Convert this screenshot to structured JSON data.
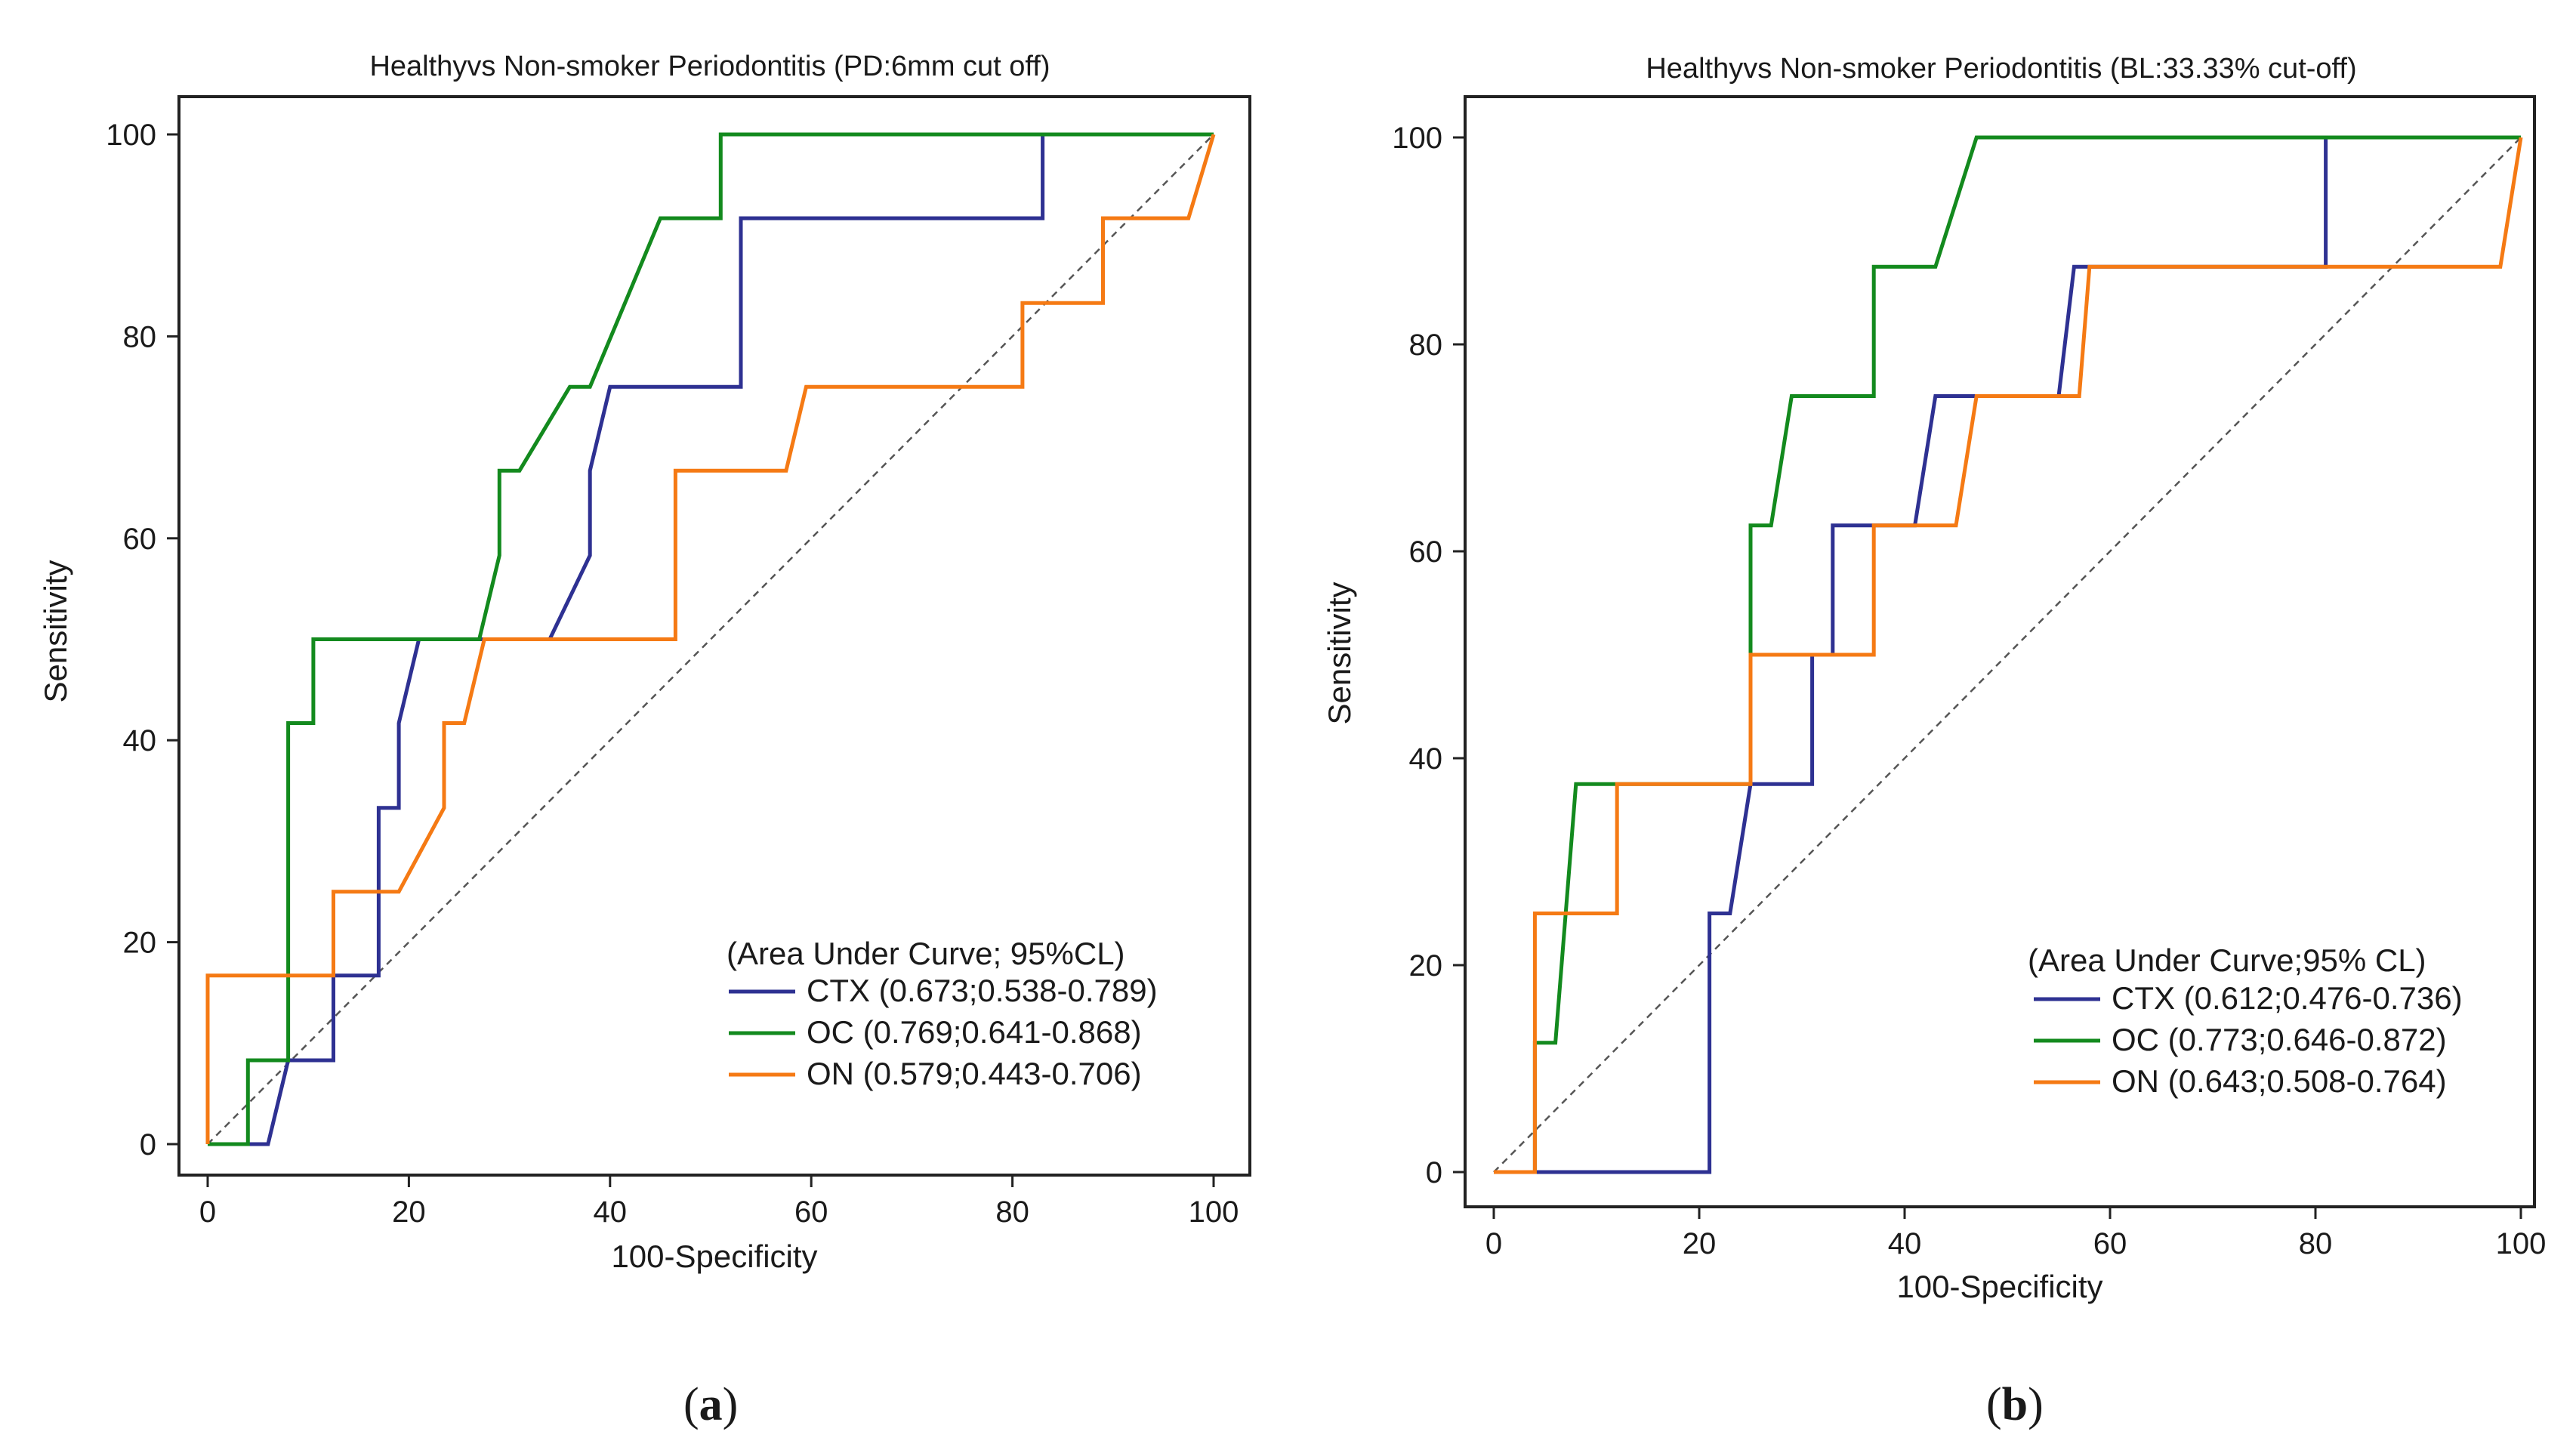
{
  "colors": {
    "CTX": "#2e3192",
    "OC": "#138a1e",
    "ON": "#f57a14",
    "diagonal": "#555555",
    "frame": "#222222"
  },
  "chart_data": [
    {
      "type": "line",
      "title": "Healthyvs Non-smoker Periodontitis (PD:6mm cut off)",
      "xlabel": "100-Specificity",
      "ylabel": "Sensitivity",
      "xlim": [
        0,
        100
      ],
      "ylim": [
        0,
        100
      ],
      "xticks": [
        "0",
        "20",
        "40",
        "60",
        "80",
        "100"
      ],
      "yticks": [
        "0",
        "20",
        "40",
        "60",
        "80",
        "100"
      ],
      "legend_title": "(Area Under Curve; 95%CL)",
      "legend_position": "bottom-right",
      "grid": false,
      "reference_diagonal": true,
      "panel_label_open": "(",
      "panel_label": "a",
      "panel_label_close": ")",
      "series": [
        {
          "key": "CTX",
          "name": "CTX (0.673;0.538-0.789)",
          "x": [
            0,
            6,
            8,
            12.5,
            12.5,
            17,
            17,
            19,
            19,
            21,
            21,
            34,
            38,
            38,
            40,
            42,
            53,
            53,
            83,
            83,
            100
          ],
          "y": [
            0,
            0,
            8.3,
            8.3,
            16.7,
            16.7,
            33.3,
            33.3,
            41.7,
            50,
            50,
            50,
            58.3,
            66.7,
            75,
            75,
            75,
            91.7,
            91.7,
            100,
            100
          ]
        },
        {
          "key": "OC",
          "name": "OC (0.769;0.641-0.868)",
          "x": [
            0,
            4,
            4,
            8,
            8,
            10.5,
            10.5,
            27,
            29,
            29,
            31,
            36,
            38,
            45,
            51,
            51,
            100
          ],
          "y": [
            0,
            0,
            8.3,
            8.3,
            41.7,
            41.7,
            50,
            50,
            58.3,
            66.7,
            66.7,
            75,
            75,
            91.7,
            91.7,
            100,
            100
          ]
        },
        {
          "key": "ON",
          "name": "ON (0.579;0.443-0.706)",
          "x": [
            0,
            0,
            12.5,
            12.5,
            19,
            23.5,
            23.5,
            25.5,
            25.5,
            27.5,
            46.5,
            46.5,
            57.5,
            59.5,
            81,
            81,
            89,
            89,
            97.5,
            97.5,
            100
          ],
          "y": [
            0,
            16.7,
            16.7,
            25,
            25,
            33.3,
            41.7,
            41.7,
            41.7,
            50,
            50,
            66.7,
            66.7,
            75,
            75,
            83.3,
            83.3,
            91.7,
            91.7,
            91.7,
            100
          ]
        }
      ]
    },
    {
      "type": "line",
      "title": "Healthyvs Non-smoker Periodontitis (BL:33.33% cut-off)",
      "xlabel": "100-Specificity",
      "ylabel": "Sensitivity",
      "xlim": [
        0,
        100
      ],
      "ylim": [
        0,
        100
      ],
      "xticks": [
        "0",
        "20",
        "40",
        "60",
        "80",
        "100"
      ],
      "yticks": [
        "0",
        "20",
        "40",
        "60",
        "80",
        "100"
      ],
      "legend_title": "(Area Under Curve;95% CL)",
      "legend_position": "bottom-right",
      "grid": false,
      "reference_diagonal": true,
      "panel_label_open": "(",
      "panel_label": "b",
      "panel_label_close": ")",
      "series": [
        {
          "key": "CTX",
          "name": "CTX (0.612;0.476-0.736)",
          "x": [
            0,
            21,
            21,
            22,
            23,
            25,
            31,
            31,
            33,
            33,
            41,
            43,
            47,
            55,
            56.5,
            58,
            81,
            81,
            100
          ],
          "y": [
            0,
            0,
            25,
            25,
            25,
            37.5,
            37.5,
            50,
            50,
            62.5,
            62.5,
            75,
            75,
            75,
            87.5,
            87.5,
            87.5,
            100,
            100
          ]
        },
        {
          "key": "OC",
          "name": "OC (0.773;0.646-0.872)",
          "x": [
            0,
            4,
            4,
            6,
            8,
            12,
            25,
            25,
            27,
            29,
            37,
            37,
            43,
            47,
            100
          ],
          "y": [
            0,
            0,
            12.5,
            12.5,
            37.5,
            37.5,
            37.5,
            62.5,
            62.5,
            75,
            75,
            87.5,
            87.5,
            100,
            100
          ]
        },
        {
          "key": "ON",
          "name": "ON (0.643;0.508-0.764)",
          "x": [
            0,
            4,
            4,
            12,
            12,
            25,
            25,
            37,
            37,
            45,
            47,
            57,
            58,
            98,
            100
          ],
          "y": [
            0,
            0,
            25,
            25,
            37.5,
            37.5,
            50,
            50,
            62.5,
            62.5,
            75,
            75,
            87.5,
            87.5,
            100
          ]
        }
      ]
    }
  ]
}
